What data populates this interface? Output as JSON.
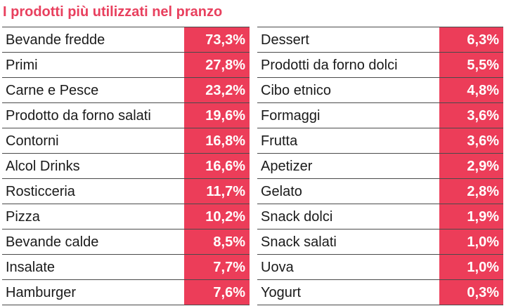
{
  "chart_data": {
    "type": "table",
    "title": "I prodotti più utilizzati nel pranzo",
    "columns": [
      {
        "rows": [
          {
            "label": "Bevande fredde",
            "value": "73,3%"
          },
          {
            "label": "Primi",
            "value": "27,8%"
          },
          {
            "label": "Carne e Pesce",
            "value": "23,2%"
          },
          {
            "label": "Prodotto da forno salati",
            "value": "19,6%"
          },
          {
            "label": "Contorni",
            "value": "16,8%"
          },
          {
            "label": "Alcol Drinks",
            "value": "16,6%"
          },
          {
            "label": "Rosticceria",
            "value": "11,7%"
          },
          {
            "label": "Pizza",
            "value": "10,2%"
          },
          {
            "label": "Bevande calde",
            "value": "8,5%"
          },
          {
            "label": "Insalate",
            "value": "7,7%"
          },
          {
            "label": "Hamburger",
            "value": "7,6%"
          }
        ]
      },
      {
        "rows": [
          {
            "label": "Dessert",
            "value": "6,3%"
          },
          {
            "label": "Prodotti da forno dolci",
            "value": "5,5%"
          },
          {
            "label": "Cibo etnico",
            "value": "4,8%"
          },
          {
            "label": "Formaggi",
            "value": "3,6%"
          },
          {
            "label": "Frutta",
            "value": "3,6%"
          },
          {
            "label": "Apetizer",
            "value": "2,9%"
          },
          {
            "label": "Gelato",
            "value": "2,8%"
          },
          {
            "label": "Snack dolci",
            "value": "1,9%"
          },
          {
            "label": "Snack salati",
            "value": "1,0%"
          },
          {
            "label": "Uova",
            "value": "1,0%"
          },
          {
            "label": "Yogurt",
            "value": "0,3%"
          }
        ]
      }
    ]
  },
  "colors": {
    "title": "#e8405e",
    "value_bg": "#ec3d59",
    "value_text": "#ffffff",
    "divider": "#4a4a4a"
  }
}
